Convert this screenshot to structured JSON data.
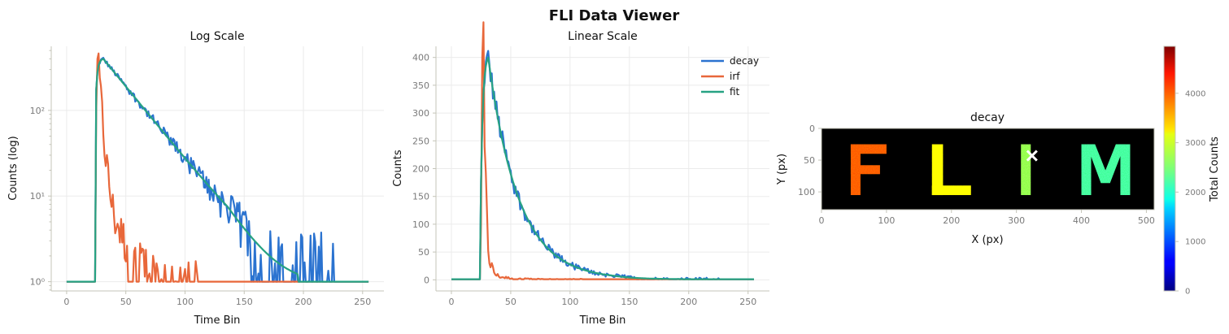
{
  "figure": {
    "title": "FLI Data Viewer"
  },
  "chart_data": [
    {
      "id": "log",
      "type": "line",
      "title": "Log Scale",
      "xlabel": "Time Bin",
      "ylabel": "Counts (log)",
      "yscale": "log",
      "xlim": [
        -13,
        268
      ],
      "ylim": [
        0.78,
        560
      ],
      "xticks": [
        0,
        50,
        100,
        150,
        200,
        250
      ],
      "yticks": [
        1,
        10,
        100
      ],
      "ytick_labels": [
        "10⁰",
        "10¹",
        "10²"
      ],
      "grid": true,
      "legend": "none",
      "series": [
        {
          "name": "decay",
          "color": "#2b73d0"
        },
        {
          "name": "irf",
          "color": "#e8673a"
        },
        {
          "name": "fit",
          "color": "#27a283"
        }
      ]
    },
    {
      "id": "linear",
      "type": "line",
      "title": "Linear Scale",
      "xlabel": "Time Bin",
      "ylabel": "Counts",
      "yscale": "linear",
      "xlim": [
        -13,
        268
      ],
      "ylim": [
        -20,
        420
      ],
      "xticks": [
        0,
        50,
        100,
        150,
        200,
        250
      ],
      "yticks": [
        0,
        50,
        100,
        150,
        200,
        250,
        300,
        350,
        400
      ],
      "grid": true,
      "legend": "top-right",
      "series": [
        {
          "name": "decay",
          "color": "#2b73d0"
        },
        {
          "name": "irf",
          "color": "#e8673a"
        },
        {
          "name": "fit",
          "color": "#27a283"
        }
      ]
    },
    {
      "id": "image",
      "type": "heatmap",
      "title": "decay",
      "xlabel": "X (px)",
      "ylabel": "Y (px)",
      "xlim": [
        0,
        512
      ],
      "ylim": [
        0,
        128
      ],
      "xticks": [
        0,
        100,
        200,
        300,
        400,
        500
      ],
      "yticks": [
        0,
        50,
        100
      ],
      "colormap": "jet",
      "marker": {
        "x": 324,
        "y": 43,
        "symbol": "x",
        "color": "#ffffff"
      },
      "letters": [
        {
          "text": "F",
          "value": 3800
        },
        {
          "text": "L",
          "value": 3100
        },
        {
          "text": "I",
          "value": 2650
        },
        {
          "text": "M",
          "value": 2250
        }
      ],
      "colorbar": {
        "label": "Total Counts",
        "range": [
          0,
          4950
        ],
        "ticks": [
          0,
          1000,
          2000,
          3000,
          4000
        ]
      }
    }
  ],
  "series_params": {
    "t_max": 255,
    "irf": {
      "onset": 24,
      "peak_bin": 26,
      "peak": 400,
      "tail_floor": 1
    },
    "decay": {
      "onset": 24,
      "peak_bin": 31,
      "peak": 400,
      "tau": 25.5,
      "floor": 1
    },
    "fit": {
      "onset": 24,
      "peak_bin": 31,
      "peak": 400,
      "tau": 25.5,
      "floor": 1,
      "end_bin": 196
    }
  }
}
